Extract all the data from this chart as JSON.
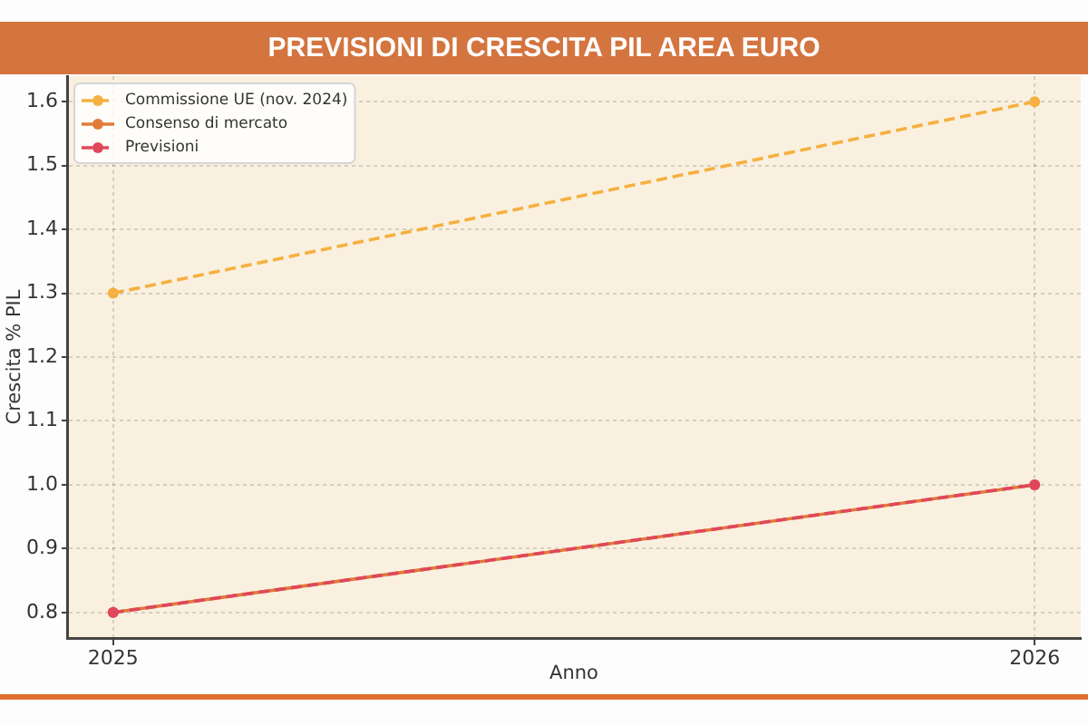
{
  "chart_data": {
    "type": "line",
    "title": "PREVISIONI DI CRESCITA PIL AREA EURO",
    "xlabel": "Anno",
    "ylabel": "Crescita % PIL",
    "x": [
      2025,
      2026
    ],
    "series": [
      {
        "name": "Commissione UE (nov. 2024)",
        "color": "#f5b041",
        "values": [
          1.3,
          1.6
        ],
        "line_style": "dashed"
      },
      {
        "name": "Consenso di mercato",
        "color": "#e07b39",
        "values": [
          0.8,
          1.0
        ],
        "line_style": "solid"
      },
      {
        "name": "Previsioni",
        "color": "#e0475b",
        "values": [
          0.8,
          1.0
        ],
        "line_style": "dashed"
      }
    ],
    "xlim": [
      2024.95,
      2026.05
    ],
    "xticks": [
      2025,
      2026
    ],
    "ylim": [
      0.76,
      1.64
    ],
    "yticks": [
      0.8,
      0.9,
      {
        "value": 1,
        "label": "1.0"
      },
      1.1,
      1.2,
      1.3,
      1.4,
      1.5,
      1.6
    ],
    "grid": true,
    "legend": "top left",
    "marker": "circle"
  }
}
